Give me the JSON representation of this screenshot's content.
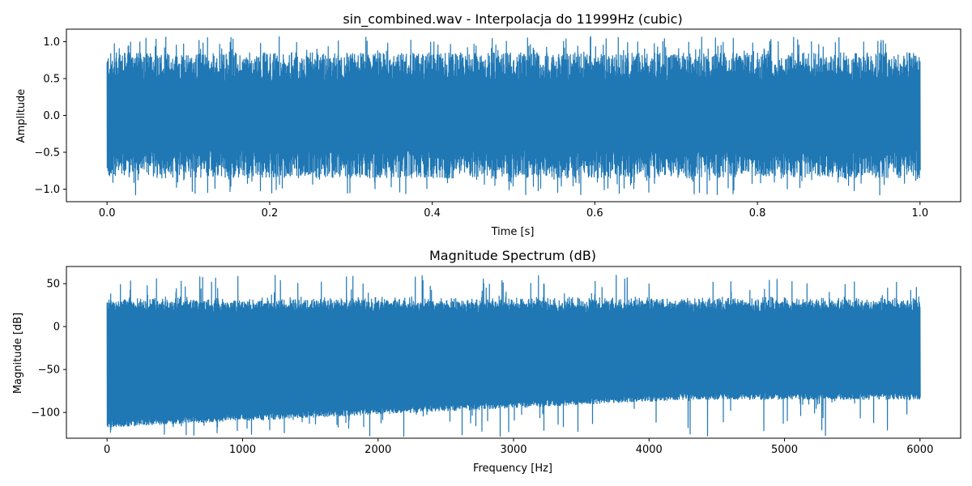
{
  "chart_data": [
    {
      "type": "line",
      "title": "sin_combined.wav - Interpolacja do 11999Hz (cubic)",
      "xlabel": "Time [s]",
      "ylabel": "Amplitude",
      "xlim": [
        -0.05,
        1.05
      ],
      "ylim": [
        -1.17,
        1.17
      ],
      "xticks": [
        0.0,
        0.2,
        0.4,
        0.6,
        0.8,
        1.0
      ],
      "xtick_labels": [
        "0.0",
        "0.2",
        "0.4",
        "0.6",
        "0.8",
        "1.0"
      ],
      "yticks": [
        -1.0,
        -0.5,
        0.0,
        0.5,
        1.0
      ],
      "ytick_labels": [
        "−1.0",
        "−0.5",
        "0.0",
        "0.5",
        "1.0"
      ],
      "grid": false,
      "series_color": "#1f77b4",
      "envelope": {
        "x_start": 0.0,
        "x_end": 1.0,
        "typical_min": -0.85,
        "typical_max": 0.85,
        "peak_min": -1.08,
        "peak_max": 1.07
      }
    },
    {
      "type": "line",
      "title": "Magnitude Spectrum (dB)",
      "xlabel": "Frequency [Hz]",
      "ylabel": "Magnitude [dB]",
      "xlim": [
        -300,
        6300
      ],
      "ylim": [
        -130,
        70
      ],
      "xticks": [
        0,
        1000,
        2000,
        3000,
        4000,
        5000,
        6000
      ],
      "xtick_labels": [
        "0",
        "1000",
        "2000",
        "3000",
        "4000",
        "5000",
        "6000"
      ],
      "yticks": [
        -100,
        -50,
        0,
        50
      ],
      "ytick_labels": [
        "−100",
        "−50",
        "0",
        "50"
      ],
      "grid": false,
      "series_color": "#1f77b4",
      "envelope": {
        "x_start": 0,
        "x_end": 6000,
        "peak_max": 60,
        "typical_max": 35,
        "typical_min_low_freq": -117,
        "typical_min_high_freq": -85,
        "min": -128
      }
    }
  ]
}
